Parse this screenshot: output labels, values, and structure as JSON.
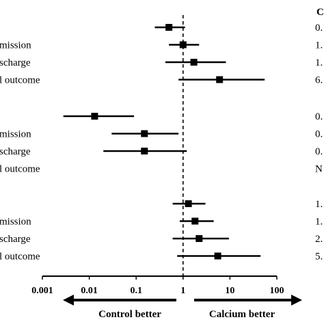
{
  "chart_data": {
    "type": "forest",
    "x_axis": {
      "scale": "log",
      "range": [
        0.001,
        100
      ],
      "ticks": [
        "0.001",
        "0.01",
        "0.1",
        "1",
        "10",
        "100"
      ],
      "reference_line": 1
    },
    "direction_labels": {
      "left": "Control better",
      "right": "Calcium better"
    },
    "right_column_header": "C",
    "groups": [
      {
        "rows": [
          {
            "label": "",
            "estimate": 0.5,
            "ci": [
              0.25,
              1.1
            ],
            "value_text": "0."
          },
          {
            "label": "mission",
            "estimate": 1.0,
            "ci": [
              0.5,
              2.2
            ],
            "value_text": "1."
          },
          {
            "label": "scharge",
            "estimate": 1.7,
            "ci": [
              0.42,
              8.2
            ],
            "value_text": "1."
          },
          {
            "label": "l outcome",
            "estimate": 6.0,
            "ci": [
              0.8,
              55
            ],
            "value_text": "6."
          }
        ]
      },
      {
        "rows": [
          {
            "label": "",
            "estimate": 0.013,
            "ci": [
              0.0028,
              0.09
            ],
            "value_text": "0."
          },
          {
            "label": "mission",
            "estimate": 0.15,
            "ci": [
              0.03,
              0.8
            ],
            "value_text": "0."
          },
          {
            "label": "scharge",
            "estimate": 0.15,
            "ci": [
              0.02,
              1.2
            ],
            "value_text": "0."
          },
          {
            "label": "l outcome",
            "estimate": null,
            "ci": null,
            "value_text": "N"
          }
        ]
      },
      {
        "rows": [
          {
            "label": "",
            "estimate": 1.3,
            "ci": [
              0.6,
              3.0
            ],
            "value_text": "1."
          },
          {
            "label": "mission",
            "estimate": 1.8,
            "ci": [
              0.85,
              4.5
            ],
            "value_text": "1."
          },
          {
            "label": "scharge",
            "estimate": 2.2,
            "ci": [
              0.6,
              9.5
            ],
            "value_text": "2."
          },
          {
            "label": "l outcome",
            "estimate": 5.5,
            "ci": [
              0.75,
              45
            ],
            "value_text": "5."
          }
        ]
      }
    ]
  }
}
